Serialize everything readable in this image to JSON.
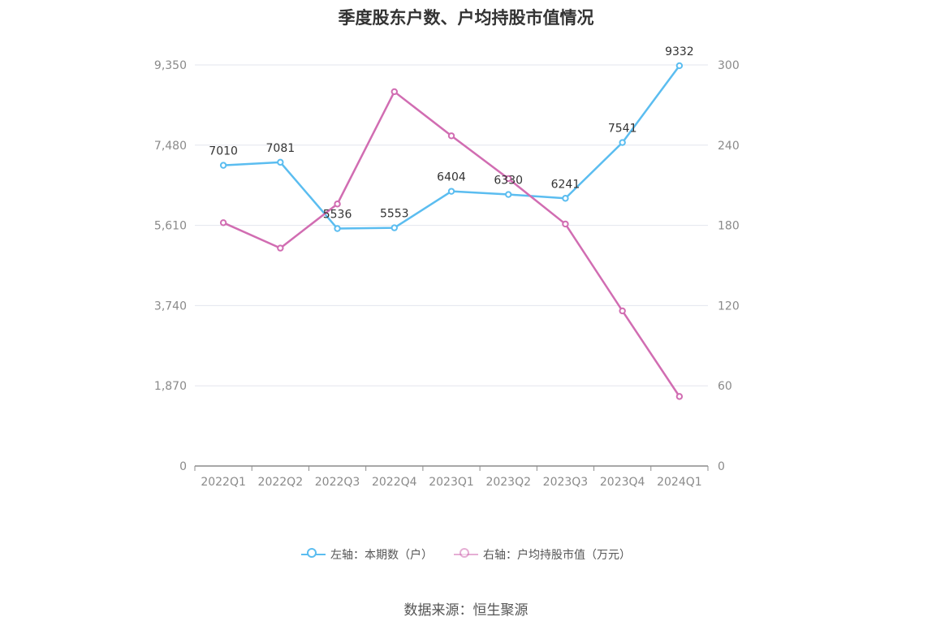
{
  "chart_data": {
    "type": "line",
    "title": "季度股东户数、户均持股市值情况",
    "categories": [
      "2022Q1",
      "2022Q2",
      "2022Q3",
      "2022Q4",
      "2023Q1",
      "2023Q2",
      "2023Q3",
      "2023Q4",
      "2024Q1"
    ],
    "series": [
      {
        "name": "左轴：本期数（户）",
        "axis": "left",
        "color": "#5bbdf0",
        "values": [
          7010,
          7081,
          5536,
          5553,
          6404,
          6330,
          6241,
          7541,
          9332
        ],
        "labels": [
          "7010",
          "7081",
          "5536",
          "5553",
          "6404",
          "6330",
          "6241",
          "7541",
          "9332"
        ]
      },
      {
        "name": "右轴：户均持股市值（万元）",
        "axis": "right",
        "color": "#d16db2",
        "values": [
          182,
          163,
          196,
          280,
          247,
          215,
          181,
          116,
          52
        ]
      }
    ],
    "left_axis": {
      "ylim": [
        0,
        9350
      ],
      "ticks": [
        0,
        1870,
        3740,
        5610,
        7480,
        9350
      ],
      "tick_labels": [
        "0",
        "1,870",
        "3,740",
        "5,610",
        "7,480",
        "9,350"
      ]
    },
    "right_axis": {
      "ylim": [
        0,
        300
      ],
      "ticks": [
        0,
        60,
        120,
        180,
        240,
        300
      ],
      "tick_labels": [
        "0",
        "60",
        "120",
        "180",
        "240",
        "300"
      ]
    },
    "grid": true,
    "legend_position": "bottom"
  },
  "source_text": "数据来源：恒生聚源"
}
